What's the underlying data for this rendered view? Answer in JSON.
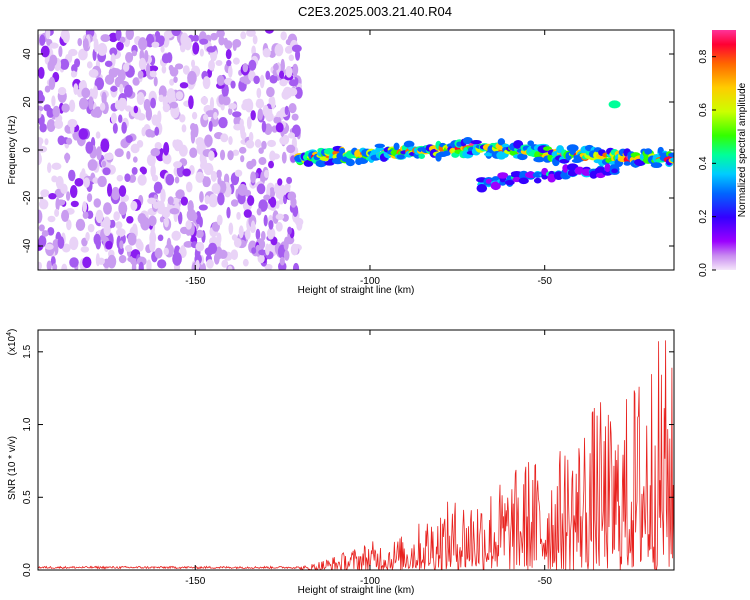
{
  "page": {
    "title": "C2E3.2025.003.21.40.R04"
  },
  "chart_data": [
    {
      "type": "heatmap",
      "title": "C2E3.2025.003.21.40.R04",
      "xlabel": "Height of straight line (km)",
      "ylabel": "Frequency (Hz)",
      "xlim": [
        -195,
        -13
      ],
      "ylim": [
        -50,
        50
      ],
      "x_ticks": [
        -150,
        -100,
        -50
      ],
      "y_ticks": [
        40,
        20,
        0,
        -20,
        -40
      ],
      "colorbar": {
        "label": "Normalized spectral amplitude",
        "range": [
          0.0,
          0.9
        ],
        "ticks": [
          0.0,
          0.2,
          0.4,
          0.6,
          0.8
        ],
        "colors": [
          "#f5e6fa",
          "#9b00ff",
          "#3300ff",
          "#0066ff",
          "#00ccff",
          "#00ff99",
          "#33ff00",
          "#ccff00",
          "#ffcc00",
          "#ff6600",
          "#ff0033",
          "#ff3399"
        ]
      },
      "features": [
        {
          "label": "noise field",
          "x_range": [
            -195,
            -120
          ],
          "y_range": [
            -50,
            50
          ],
          "amplitude": 0.1
        },
        {
          "label": "main band",
          "x": [
            -120,
            -110,
            -100,
            -90,
            -80,
            -70,
            -60,
            -50,
            -40,
            -30,
            -20,
            -13
          ],
          "y": [
            -3,
            -2,
            -2,
            -1,
            0,
            1,
            0,
            -1,
            -2,
            -3,
            -4,
            -3
          ],
          "peak_amplitude": 0.88
        },
        {
          "label": "lower branch",
          "x": [
            -68,
            -60,
            -50,
            -40,
            -30
          ],
          "y": [
            -14,
            -12,
            -10,
            -9,
            -8
          ],
          "peak_amplitude": 0.45
        },
        {
          "label": "upper blob",
          "x": [
            -30
          ],
          "y": [
            19
          ],
          "peak_amplitude": 0.4
        }
      ]
    },
    {
      "type": "line",
      "title": "",
      "xlabel": "Height of straight line (km)",
      "ylabel": "SNR (10 * v/v)",
      "y_multiplier": "(x10",
      "y_multiplier_exp": "4",
      "y_multiplier_close": ")",
      "xlim": [
        -195,
        -13
      ],
      "ylim": [
        0,
        1.65
      ],
      "x_ticks": [
        -150,
        -100,
        -50
      ],
      "y_ticks": [
        0.0,
        0.5,
        1.0,
        1.5
      ],
      "color": "#e8221f",
      "series": [
        {
          "x": [
            -195,
            -180,
            -160,
            -140,
            -120,
            -115,
            -110,
            -105,
            -100,
            -95,
            -90,
            -85,
            -80,
            -75,
            -70,
            -65,
            -60,
            -55,
            -50,
            -45,
            -40,
            -35,
            -30,
            -25,
            -20,
            -15,
            -13
          ],
          "y": [
            0.02,
            0.02,
            0.02,
            0.02,
            0.02,
            0.06,
            0.1,
            0.15,
            0.2,
            0.2,
            0.25,
            0.35,
            0.45,
            0.5,
            0.55,
            0.6,
            0.65,
            0.8,
            0.75,
            0.85,
            1.0,
            1.2,
            1.05,
            1.3,
            1.55,
            1.65,
            1.35
          ]
        }
      ]
    }
  ]
}
